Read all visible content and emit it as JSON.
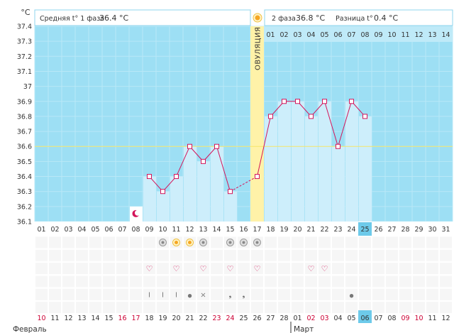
{
  "unit_label": "°C",
  "phase1": {
    "label": "Средняя t° 1 фаза",
    "value": "36.4 °C"
  },
  "phase2": {
    "label": "2 фаза",
    "value": "36.8 °C"
  },
  "difference": {
    "label": "Разница t°",
    "value": "0.4 °C"
  },
  "ovulation_label": "ОВУЛЯЦИЯ",
  "cycle_days": [
    "01",
    "02",
    "03",
    "04",
    "05",
    "06",
    "07",
    "08",
    "09",
    "10",
    "11",
    "12",
    "13",
    "14",
    "15",
    "16",
    "17",
    "18",
    "19",
    "20",
    "21",
    "22",
    "23",
    "24",
    "25",
    "26",
    "27",
    "28",
    "29",
    "30",
    "31"
  ],
  "phase2_days": [
    "01",
    "02",
    "03",
    "04",
    "05",
    "06",
    "07",
    "08",
    "09",
    "10",
    "11",
    "12",
    "13",
    "14"
  ],
  "current_cycle_day": "25",
  "dates": [
    {
      "d": "10",
      "red": true
    },
    {
      "d": "11"
    },
    {
      "d": "12"
    },
    {
      "d": "13"
    },
    {
      "d": "14"
    },
    {
      "d": "15"
    },
    {
      "d": "16",
      "red": true
    },
    {
      "d": "17",
      "red": true
    },
    {
      "d": "18"
    },
    {
      "d": "19"
    },
    {
      "d": "20"
    },
    {
      "d": "21"
    },
    {
      "d": "22"
    },
    {
      "d": "23",
      "red": true
    },
    {
      "d": "24",
      "red": true
    },
    {
      "d": "25"
    },
    {
      "d": "26"
    },
    {
      "d": "27"
    },
    {
      "d": "28"
    },
    {
      "d": "01"
    },
    {
      "d": "02",
      "red": true
    },
    {
      "d": "03",
      "red": true
    },
    {
      "d": "04"
    },
    {
      "d": "05"
    },
    {
      "d": "06",
      "highlight": true
    },
    {
      "d": "07"
    },
    {
      "d": "08"
    },
    {
      "d": "09",
      "red": true
    },
    {
      "d": "10",
      "red": true
    },
    {
      "d": "11"
    },
    {
      "d": "12"
    }
  ],
  "months": [
    "Февраль",
    "Март"
  ],
  "colors": {
    "chart_bg": "#9ddff4",
    "bar": "#cdeefb",
    "line": "#d4145a",
    "ovulation": "#fff2a8",
    "red_text": "#cc0033",
    "highlight": "#6dcaea"
  },
  "chart_data": {
    "type": "bar",
    "x_field": "cycle_day",
    "ylim": [
      36.1,
      37.4
    ],
    "y_ticks": [
      36.1,
      36.2,
      36.3,
      36.4,
      36.5,
      36.6,
      36.7,
      36.8,
      36.9,
      37,
      37.1,
      37.2,
      37.3,
      37.4
    ],
    "y_tick_labels": [
      "36.1",
      "36.2",
      "36.3",
      "36.4",
      "36.5",
      "36.6",
      "36.7",
      "36.8",
      "36.9",
      "37",
      "37.1",
      "37.2",
      "37.3",
      "37.4"
    ],
    "coverline": 36.6,
    "ovulation_day": 17,
    "x": [
      9,
      10,
      11,
      12,
      13,
      14,
      15,
      17,
      18,
      19,
      20,
      21,
      22,
      23,
      24,
      25
    ],
    "values": [
      36.4,
      36.3,
      36.4,
      36.6,
      36.5,
      36.6,
      36.3,
      36.4,
      36.8,
      36.9,
      36.9,
      36.8,
      36.9,
      36.6,
      36.9,
      36.8
    ],
    "menstruation_days": [
      8
    ]
  },
  "symbols": {
    "circle_days": [
      10,
      13,
      15,
      16,
      17
    ],
    "sun_days": [
      11,
      12
    ],
    "heart_days": [
      9,
      11,
      13,
      15,
      17,
      21,
      22
    ],
    "symptom_row": [
      {
        "day": 9,
        "icon": "cervix-icon"
      },
      {
        "day": 10,
        "icon": "cervix-icon"
      },
      {
        "day": 11,
        "icon": "cervix-icon"
      },
      {
        "day": 12,
        "icon": "drop-icon"
      },
      {
        "day": 13,
        "icon": "cross-icon"
      },
      {
        "day": 15,
        "icon": "comma-icon"
      },
      {
        "day": 16,
        "icon": "comma-icon"
      },
      {
        "day": 24,
        "icon": "drop-icon"
      }
    ]
  }
}
